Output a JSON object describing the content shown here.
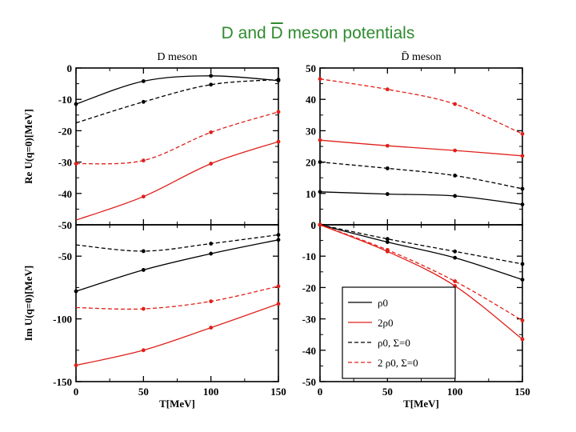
{
  "slide": {
    "title_prefix": "D and ",
    "title_bar_letter": "D",
    "title_suffix": " meson potentials"
  },
  "colors": {
    "black": "#000000",
    "red": "#e0201a",
    "title_green": "#2e8b2e"
  },
  "legend": {
    "items": [
      {
        "label": "ρ0",
        "color": "#000000",
        "dash": "solid"
      },
      {
        "label": "2ρ0",
        "color": "#e0201a",
        "dash": "solid"
      },
      {
        "label": "ρ0, Σ=0",
        "color": "#000000",
        "dash": "dashed"
      },
      {
        "label": "2 ρ0, Σ=0",
        "color": "#e0201a",
        "dash": "dashed"
      }
    ]
  },
  "chart_data": [
    {
      "id": "re-d",
      "type": "line",
      "title": "D meson",
      "xlabel": "",
      "ylabel": "Re U(q=0)[MeV]",
      "xlim": [
        0,
        150
      ],
      "ylim": [
        -50,
        0
      ],
      "yticks": [
        0,
        -10,
        -20,
        -30,
        -40,
        -50
      ],
      "xticks": [],
      "series": [
        {
          "name": "ρ0",
          "color": "#000000",
          "dash": "solid",
          "x": [
            0,
            50,
            100,
            150
          ],
          "values": [
            -11.5,
            -4.2,
            -2.5,
            -4.0
          ],
          "markers": [
            0,
            50,
            100,
            150
          ]
        },
        {
          "name": "ρ0, Σ=0",
          "color": "#000000",
          "dash": "dashed",
          "x": [
            0,
            50,
            100,
            150
          ],
          "values": [
            -17.5,
            -10.8,
            -5.3,
            -3.7
          ],
          "markers": [
            50,
            100,
            150
          ]
        },
        {
          "name": "2ρ0",
          "color": "#e0201a",
          "dash": "solid",
          "x": [
            0,
            50,
            100,
            150
          ],
          "values": [
            -48.5,
            -41.0,
            -30.5,
            -23.5
          ],
          "markers": [
            50,
            100,
            150
          ]
        },
        {
          "name": "2 ρ0, Σ=0",
          "color": "#e0201a",
          "dash": "dashed",
          "x": [
            0,
            50,
            100,
            150
          ],
          "values": [
            -30.5,
            -29.5,
            -20.5,
            -14.0
          ],
          "markers": [
            0,
            50,
            100,
            150
          ]
        }
      ]
    },
    {
      "id": "re-dbar",
      "type": "line",
      "title": "D̄ meson",
      "xlabel": "",
      "ylabel": "",
      "xlim": [
        0,
        150
      ],
      "ylim": [
        0,
        50
      ],
      "yticks": [
        0,
        10,
        20,
        30,
        40,
        50
      ],
      "xticks": [],
      "series": [
        {
          "name": "ρ0",
          "color": "#000000",
          "dash": "solid",
          "x": [
            0,
            50,
            100,
            150
          ],
          "values": [
            10.5,
            9.8,
            9.2,
            6.5
          ],
          "markers": [
            0,
            50,
            100,
            150
          ]
        },
        {
          "name": "ρ0, Σ=0",
          "color": "#000000",
          "dash": "dashed",
          "x": [
            0,
            50,
            100,
            150
          ],
          "values": [
            20.0,
            18.0,
            15.7,
            11.5
          ],
          "markers": [
            0,
            50,
            100,
            150
          ]
        },
        {
          "name": "2ρ0",
          "color": "#e0201a",
          "dash": "solid",
          "x": [
            0,
            50,
            100,
            150
          ],
          "values": [
            27.0,
            25.2,
            23.7,
            22.0
          ],
          "markers": [
            0,
            50,
            100,
            150
          ]
        },
        {
          "name": "2 ρ0, Σ=0",
          "color": "#e0201a",
          "dash": "dashed",
          "x": [
            0,
            50,
            100,
            150
          ],
          "values": [
            46.5,
            43.2,
            38.5,
            29.0
          ],
          "markers": [
            0,
            50,
            100,
            150
          ]
        }
      ]
    },
    {
      "id": "im-d",
      "type": "line",
      "title": "",
      "xlabel": "T[MeV]",
      "ylabel": "Im U(q=0)[MeV]",
      "xlim": [
        0,
        150
      ],
      "ylim": [
        -150,
        -25
      ],
      "yticks": [
        -50,
        -100,
        -150
      ],
      "xticks": [
        0,
        50,
        100,
        150
      ],
      "series": [
        {
          "name": "ρ0",
          "color": "#000000",
          "dash": "solid",
          "x": [
            0,
            50,
            100,
            150
          ],
          "values": [
            -78,
            -61,
            -48,
            -37
          ],
          "markers": [
            0,
            50,
            100,
            150
          ]
        },
        {
          "name": "ρ0, Σ=0",
          "color": "#000000",
          "dash": "dashed",
          "x": [
            0,
            50,
            100,
            150
          ],
          "values": [
            -41,
            -46,
            -40,
            -33
          ],
          "markers": [
            50,
            100,
            150
          ]
        },
        {
          "name": "2ρ0",
          "color": "#e0201a",
          "dash": "solid",
          "x": [
            0,
            50,
            100,
            150
          ],
          "values": [
            -137,
            -125,
            -107,
            -88
          ],
          "markers": [
            0,
            50,
            100,
            150
          ]
        },
        {
          "name": "2 ρ0, Σ=0",
          "color": "#e0201a",
          "dash": "dashed",
          "x": [
            0,
            50,
            100,
            150
          ],
          "values": [
            -91,
            -92,
            -86,
            -74
          ],
          "markers": [
            50,
            100,
            150
          ]
        }
      ]
    },
    {
      "id": "im-dbar",
      "type": "line",
      "title": "",
      "xlabel": "T[MeV]",
      "ylabel": "",
      "xlim": [
        0,
        150
      ],
      "ylim": [
        -50,
        0
      ],
      "yticks": [
        0,
        -10,
        -20,
        -30,
        -40,
        -50
      ],
      "xticks": [
        0,
        50,
        100,
        150
      ],
      "series": [
        {
          "name": "ρ0",
          "color": "#000000",
          "dash": "solid",
          "x": [
            0,
            50,
            100,
            150
          ],
          "values": [
            0,
            -5.5,
            -10.5,
            -17.5
          ],
          "markers": [
            0,
            50,
            100,
            150
          ]
        },
        {
          "name": "ρ0, Σ=0",
          "color": "#000000",
          "dash": "dashed",
          "x": [
            0,
            50,
            100,
            150
          ],
          "values": [
            0,
            -4.5,
            -8.5,
            -12.5
          ],
          "markers": [
            0,
            50,
            100,
            150
          ]
        },
        {
          "name": "2ρ0",
          "color": "#e0201a",
          "dash": "solid",
          "x": [
            0,
            50,
            100,
            150
          ],
          "values": [
            0,
            -8.5,
            -19.5,
            -36.5
          ],
          "markers": [
            0,
            50,
            100,
            150
          ]
        },
        {
          "name": "2 ρ0, Σ=0",
          "color": "#e0201a",
          "dash": "dashed",
          "x": [
            0,
            50,
            100,
            150
          ],
          "values": [
            0,
            -8.0,
            -18.0,
            -30.5
          ],
          "markers": [
            0,
            50,
            100,
            150
          ]
        }
      ]
    }
  ]
}
